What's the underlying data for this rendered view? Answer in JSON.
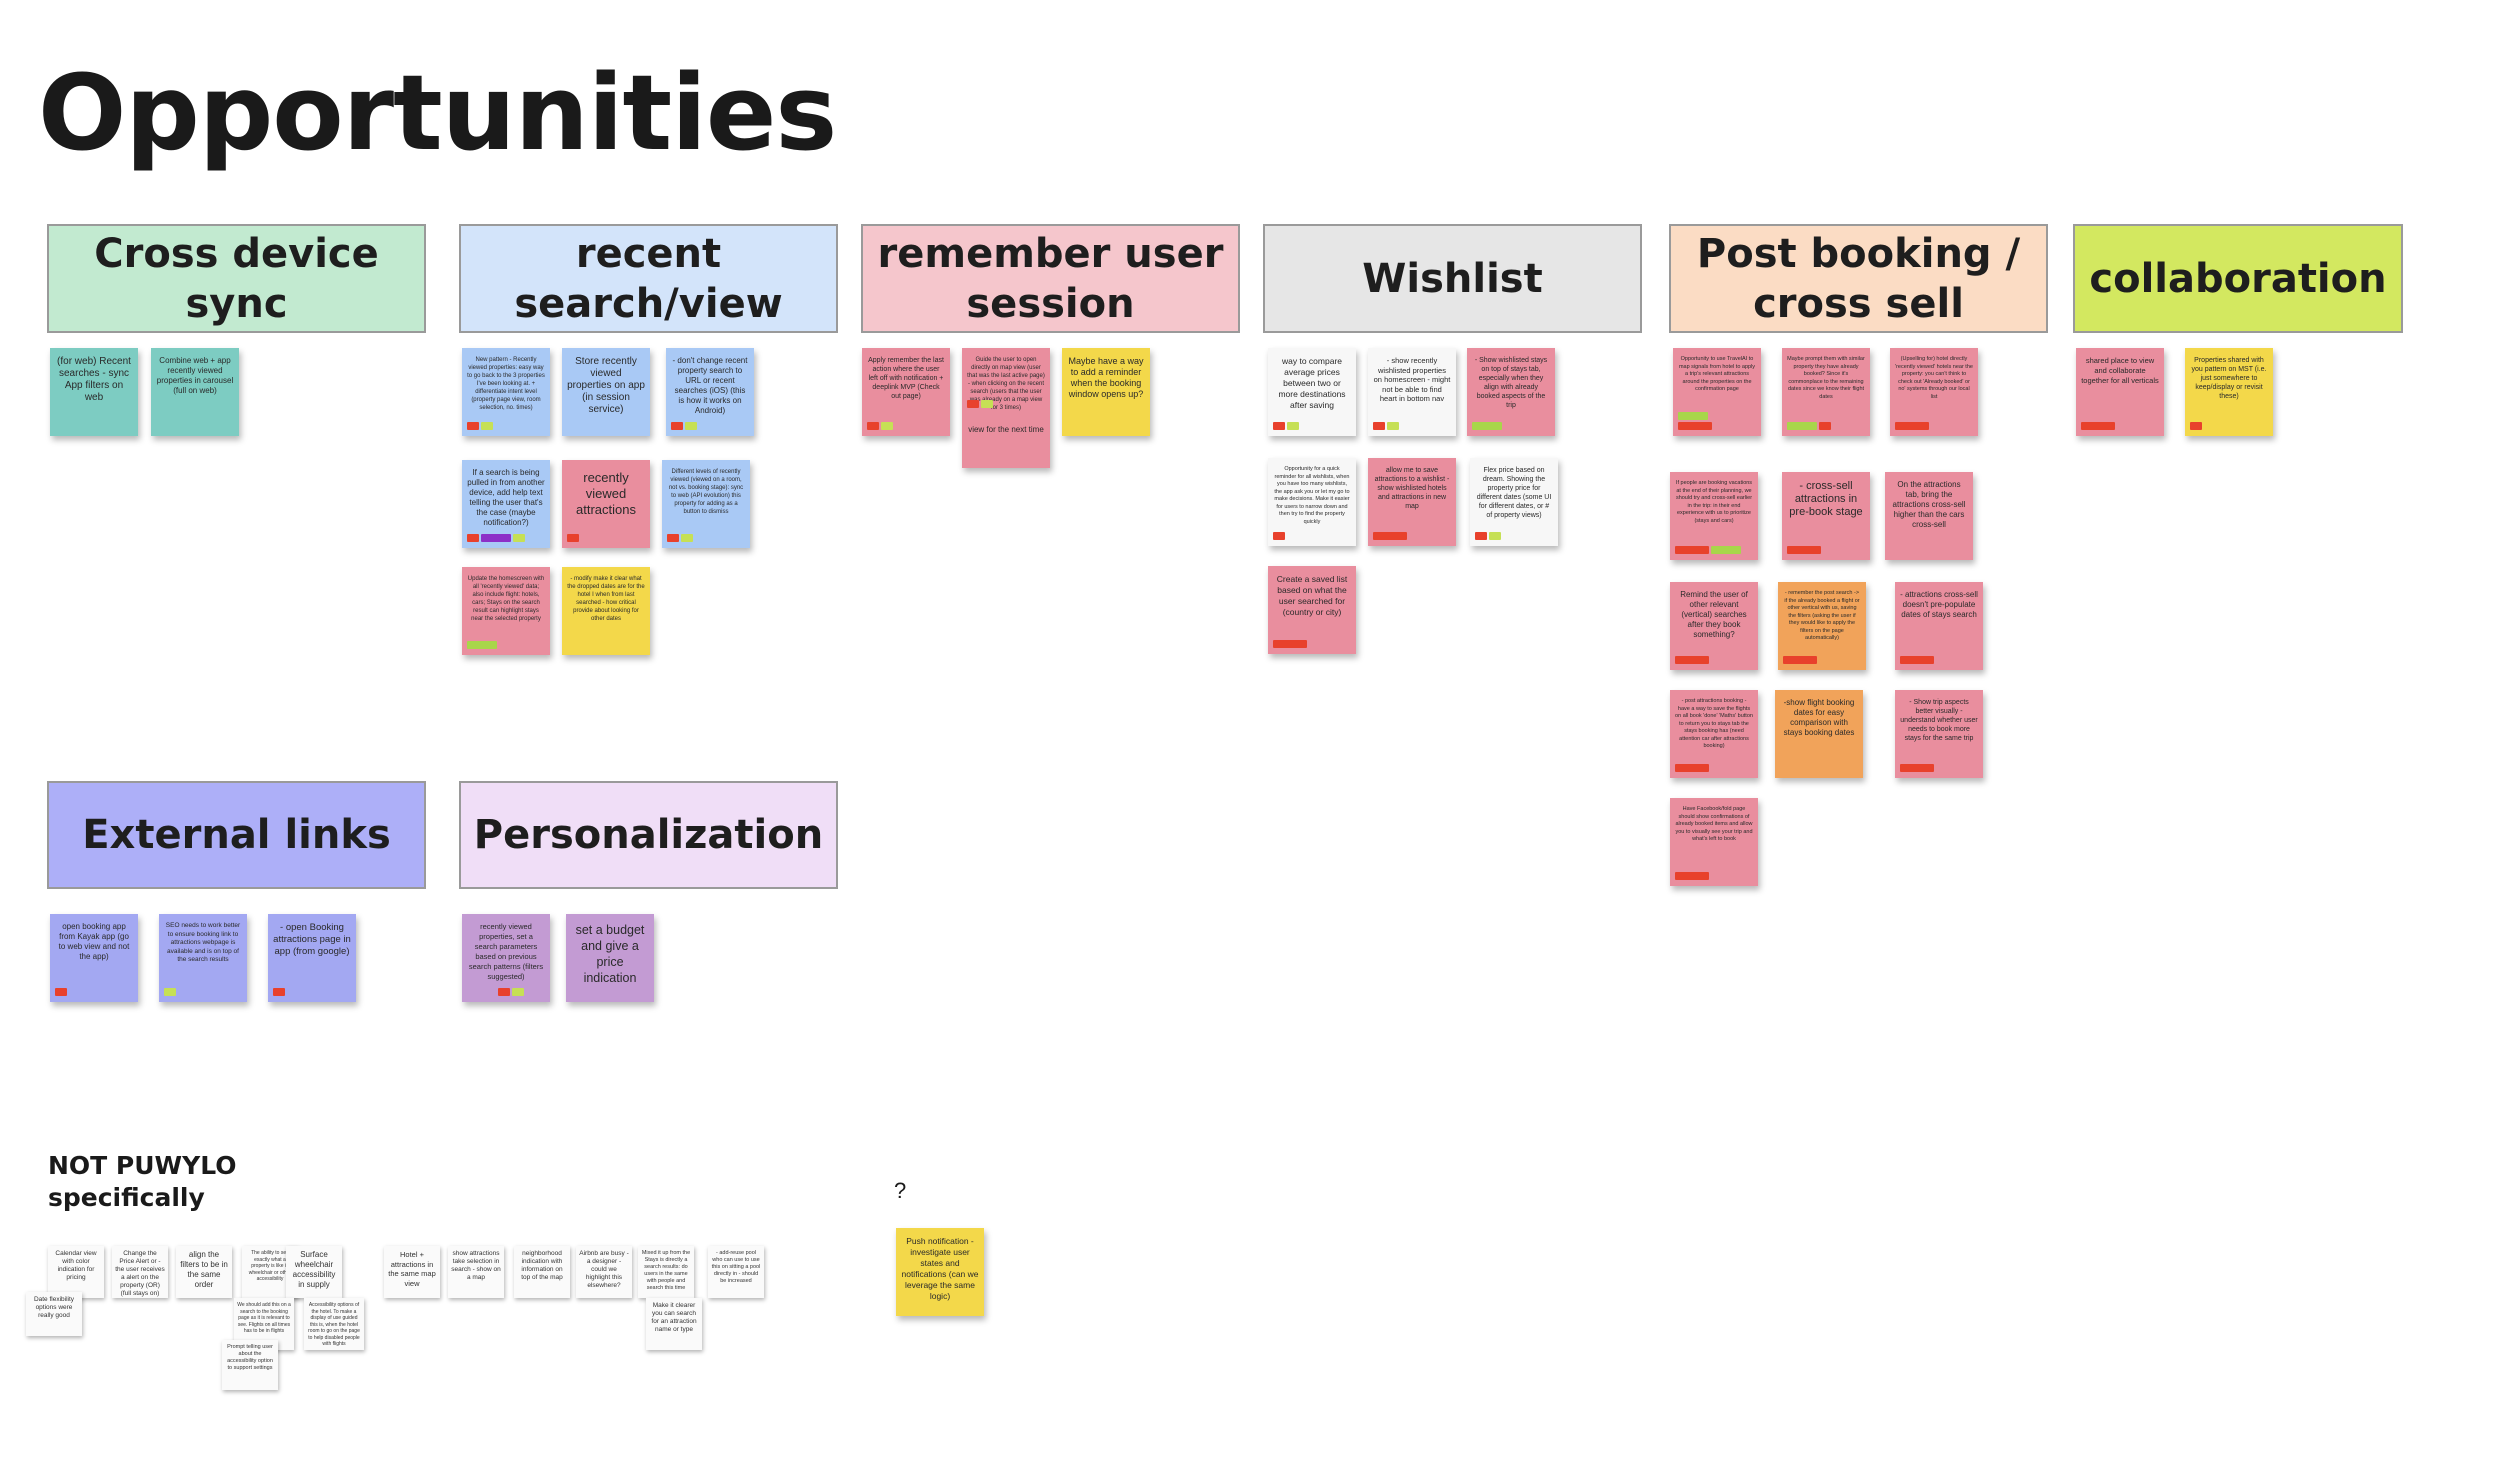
{
  "title": "Opportunities",
  "colors": {
    "green_header": "#c2ead0",
    "blue_header": "#d3e4fa",
    "pink_header": "#f5c6cc",
    "gray_header": "#e6e6e6",
    "peach_header": "#fbdcc4",
    "lime_header": "#d3e860",
    "purple_header": "#adaff8",
    "lavender_header": "#f0def7",
    "teal_note": "#7dccc2",
    "blue_note": "#a9c9f5",
    "pink_note": "#e98e9e",
    "yellow_note": "#f3d84a",
    "white_note": "#f7f7f7",
    "orange_note": "#f1a35a",
    "violet_note": "#a3a8f2",
    "mauve_note": "#c39bd3"
  },
  "columns": [
    {
      "header": "Cross device sync",
      "notes": [
        {
          "text": "(for web) Recent searches - sync App filters on web"
        },
        {
          "text": "Combine web + app recently viewed properties in carousel (full on web)"
        }
      ]
    },
    {
      "header": "recent search/view",
      "notes": [
        {
          "text": "New pattern - Recently viewed properties: easy way to go back to the 3 properties I've been looking at. + differentiate intent level (property page view, room selection, no. times)"
        },
        {
          "text": "Store recently viewed properties on app (in session service)"
        },
        {
          "text": "- don't change recent property search to URL or recent searches (iOS) (this is how it works on Android)"
        },
        {
          "text": "If a search is being pulled in from another device, add help text telling the user that's the case (maybe notification?)"
        },
        {
          "text": "recently viewed attractions"
        },
        {
          "text": "Different levels of recently viewed (viewed on a room, not vs. booking stage): sync to web (API evolution) this property for adding as a button to dismiss"
        },
        {
          "text": "Update the homescreen with all 'recently viewed' data; also include flight: hotels, cars; Stays on the search result can highlight stays near the selected property"
        },
        {
          "text": "- modify make it clear what the dropped dates are for the hotel I when from last searched - how critical provide about looking for other dates"
        }
      ]
    },
    {
      "header": "remember user session",
      "notes": [
        {
          "text": "Apply remember the last action where the user left off with notification + deeplink MVP (Check out page)"
        },
        {
          "text": "Guide the user to open directly on map view (user that was the last active page) - when clicking on the recent search (users that the user was already on a map view for 3 times)"
        },
        {
          "text": "Maybe have a way to add a reminder when the booking window opens up?"
        },
        {
          "text": "view for the next time"
        }
      ]
    },
    {
      "header": "Wishlist",
      "notes": [
        {
          "text": "way to compare average prices between two or more destinations after saving"
        },
        {
          "text": "- show recently wishlisted properties on homescreen - might not be able to find heart in bottom nav"
        },
        {
          "text": "- Show wishlisted stays on top of stays tab, especially when they align with already booked aspects of the trip"
        },
        {
          "text": "Opportunity for a quick reminder for all wishlists, when you have too many wishlists, the app ask you or let my go to make decisions. Make it easier for users to narrow down and then try to find the property quickly"
        },
        {
          "text": "allow me to save attractions to a wishlist - show wishlisted hotels and attractions in new map"
        },
        {
          "text": "Flex price based on dream. Showing the property price for different dates (some UI for different dates, or # of property views)"
        },
        {
          "text": "Create a saved list based on what the user searched for (country or city)"
        }
      ]
    },
    {
      "header": "Post booking / cross sell",
      "notes": [
        {
          "text": "Opportunity to use TravelAI to map signals from hotel to apply a trip's relevant attractions around the properties on the confirmation page"
        },
        {
          "text": "Maybe prompt them with similar property they have already booked? Since it's commonplace to the remaining dates since we know their flight dates"
        },
        {
          "text": "(Upselling for) hotel directly 'recently viewed' hotels near the property: you can't think to check out 'Already booked' or no' systems through our local list"
        },
        {
          "text": "If people are booking vacations at the end of their planning, we should try and cross-sell earlier in the trip: in their end experience with us to prioritize (stays and cars)"
        },
        {
          "text": "- cross-sell attractions in pre-book stage"
        },
        {
          "text": "On the attractions tab, bring the attractions cross-sell higher than the cars cross-sell"
        },
        {
          "text": "Remind the user of other relevant (vertical) searches after they book something?"
        },
        {
          "text": "- remember the post search -> if the already booked a flight or other vertical with us, saving the filters (asking the user if they would like to apply the filters on the page automatically)"
        },
        {
          "text": "- attractions cross-sell doesn't pre-populate dates of stays search"
        },
        {
          "text": "- post attractions booking - have a way to save the flights on all book 'done' 'Maths' button to return you to stays tab the stays booking has (need attention car after attractions booking)"
        },
        {
          "text": "-show flight booking dates for easy comparison with stays booking dates"
        },
        {
          "text": "- Show trip aspects better visually - understand whether user needs to book more stays for the same trip"
        },
        {
          "text": "Have Facebook/fold page should show confirmations of already booked items and allow you to visually see your trip and what's left to book"
        }
      ]
    },
    {
      "header": "collaboration",
      "notes": [
        {
          "text": "shared place to view and collaborate together for all verticals"
        },
        {
          "text": "Properties shared with you pattern on MST (i.e. just somewhere to keep/display or revisit these)"
        }
      ]
    },
    {
      "header": "External links",
      "notes": [
        {
          "text": "open booking app from Kayak app (go to web view and not the app)"
        },
        {
          "text": "SEO needs to work better to ensure booking link to attractions webpage is available and is on top of the search results"
        },
        {
          "text": "- open Booking attractions page in app (from google)"
        }
      ]
    },
    {
      "header": "Personalization",
      "notes": [
        {
          "text": "recently viewed properties, set a search parameters based on previous search patterns (filters suggested)"
        },
        {
          "text": "set a budget and give a price indication"
        }
      ]
    }
  ],
  "not_puwylo": {
    "label_line1": "NOT PUWYLO",
    "label_line2": "specifically",
    "notes": [
      "Calendar view with color indication for pricing",
      "Change the Price Alert or - the user receives a alert on the property (OR) (full stays on)",
      "align the filters to be in the same order",
      "The ability to see exactly what a property is like in wheelchair or other accessibility",
      "Surface wheelchair accessibility in supply",
      "Hotel + attractions in the same map view",
      "show attractions take selection in search - show on a map",
      "neighborhood indication with information on top of the map",
      "Airbnb are busy - a designer - could we highlight this elsewhere?",
      "Mixed it up from the Stays is directly a search results: do users in the same with people and search this time",
      "- add-reuse pool who can use to use this on sitting a pool directly in - should be increased",
      "Date flexibility options were really good",
      "We should add this on a search to the booking page as it is relevant to see. Flights on all times has to be in flights",
      "Accessibility options of the hotel. To make a display of use guided this is, when the hotel room to go on the page to help disabled people with flights",
      "Make it clearer you can search for an attraction name or type",
      "Prompt telling user about the accessibility option to support settings"
    ]
  },
  "question": {
    "mark": "?",
    "note": "Push notification - investigate user states and notifications (can we leverage the same logic)"
  }
}
